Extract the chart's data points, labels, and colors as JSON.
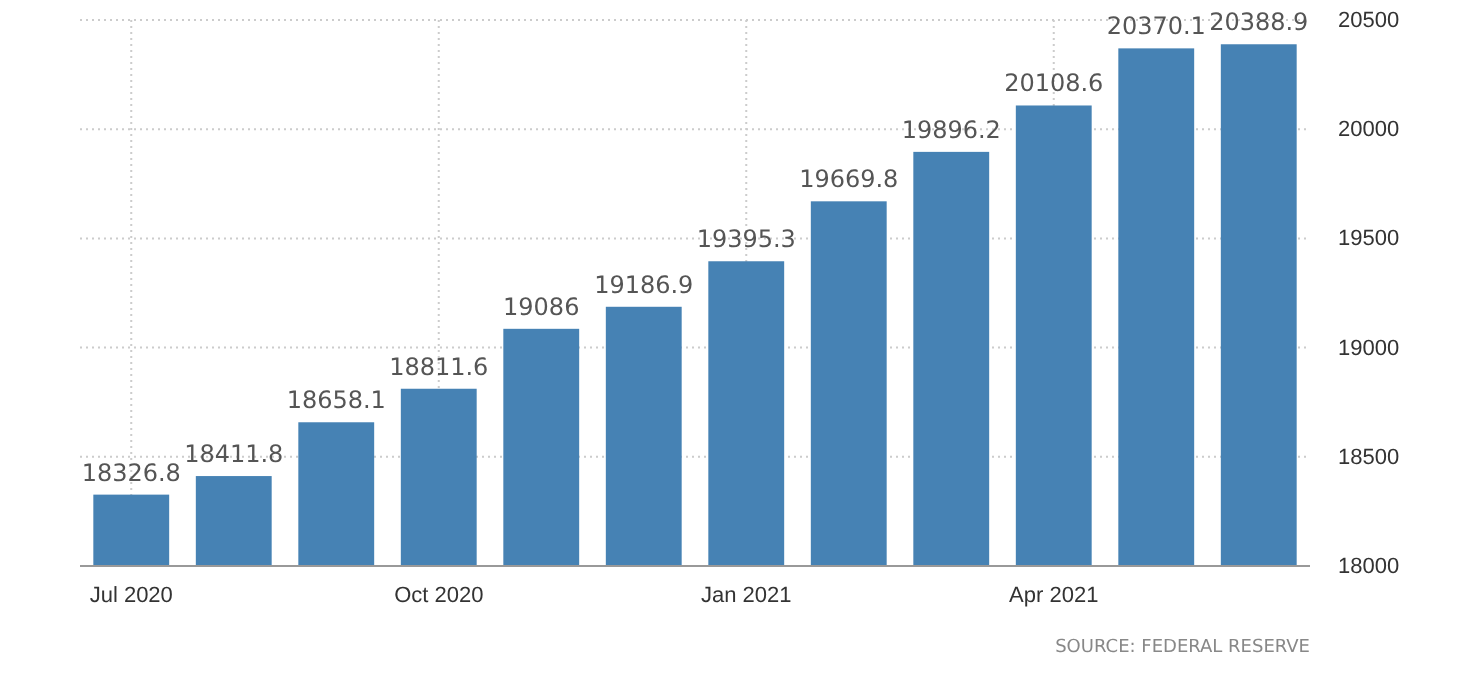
{
  "chart_data": {
    "type": "bar",
    "categories": [
      "Jul 2020",
      null,
      null,
      "Oct 2020",
      null,
      null,
      "Jan 2021",
      null,
      null,
      "Apr 2021",
      null,
      null
    ],
    "values": [
      18326.8,
      18411.8,
      18658.1,
      18811.6,
      19086,
      19186.9,
      19395.3,
      19669.8,
      19896.2,
      20108.6,
      20370.1,
      20388.9
    ],
    "color": "#4682b4",
    "ylim": [
      18000,
      20500
    ],
    "yticks": [
      18000,
      18500,
      19000,
      19500,
      20000,
      20500
    ],
    "grid": true,
    "data_labels": true,
    "annotations": [
      "SOURCE: FEDERAL RESERVE"
    ]
  }
}
